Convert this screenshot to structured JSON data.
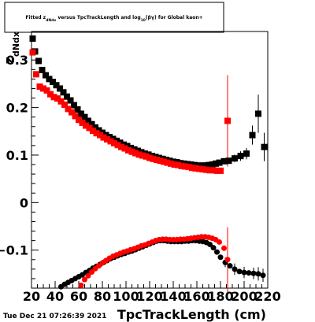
{
  "timestamp": "Tue Dec 21 07:26:39 2021",
  "chart_data": {
    "type": "scatter",
    "title": "Fitted  z_dNdx  versus TpcTrackLength and log_10(βγ) for Global kaon+",
    "xlabel": "TpcTrackLength (cm)",
    "ylabel": "z_dNdx",
    "xlim": [
      20,
      220
    ],
    "ylim": [
      -0.18,
      0.36
    ],
    "grid": false,
    "x_ticks": [
      20,
      40,
      60,
      80,
      100,
      120,
      140,
      160,
      180,
      200,
      220
    ],
    "y_ticks": [
      -0.1,
      0,
      0.1,
      0.2,
      0.3
    ],
    "y_tick_labels": [
      "−0.1",
      "0",
      "0.1",
      "0.2",
      "0.3"
    ],
    "series": [
      {
        "color": "#000000",
        "marker": "square",
        "points": [
          [
            21,
            0.345
          ],
          [
            23,
            0.318
          ],
          [
            26,
            0.298
          ],
          [
            29,
            0.279
          ],
          [
            32,
            0.268
          ],
          [
            35,
            0.26
          ],
          [
            38,
            0.254
          ],
          [
            41,
            0.247
          ],
          [
            44,
            0.24
          ],
          [
            47,
            0.232
          ],
          [
            50,
            0.223
          ],
          [
            53,
            0.215
          ],
          [
            56,
            0.205
          ],
          [
            59,
            0.196
          ],
          [
            62,
            0.187
          ],
          [
            65,
            0.18
          ],
          [
            68,
            0.172
          ],
          [
            71,
            0.165
          ],
          [
            74,
            0.158
          ],
          [
            77,
            0.152
          ],
          [
            80,
            0.147
          ],
          [
            83,
            0.142
          ],
          [
            86,
            0.138
          ],
          [
            89,
            0.134
          ],
          [
            92,
            0.13
          ],
          [
            95,
            0.126
          ],
          [
            98,
            0.122
          ],
          [
            101,
            0.119
          ],
          [
            104,
            0.115
          ],
          [
            107,
            0.112
          ],
          [
            110,
            0.109
          ],
          [
            113,
            0.106
          ],
          [
            116,
            0.103
          ],
          [
            119,
            0.101
          ],
          [
            122,
            0.098
          ],
          [
            125,
            0.096
          ],
          [
            128,
            0.094
          ],
          [
            131,
            0.092
          ],
          [
            134,
            0.09
          ],
          [
            137,
            0.088
          ],
          [
            140,
            0.086
          ],
          [
            143,
            0.085
          ],
          [
            146,
            0.083
          ],
          [
            149,
            0.082
          ],
          [
            152,
            0.081
          ],
          [
            155,
            0.08
          ],
          [
            158,
            0.079
          ],
          [
            161,
            0.078
          ],
          [
            164,
            0.078
          ],
          [
            167,
            0.078
          ],
          [
            170,
            0.079
          ],
          [
            173,
            0.08
          ],
          [
            176,
            0.082
          ],
          [
            179,
            0.084
          ],
          [
            183,
            0.087
          ],
          [
            187,
            0.088
          ],
          [
            192,
            0.093
          ],
          [
            197,
            0.098
          ],
          [
            202,
            0.103
          ],
          [
            207,
            0.142
          ],
          [
            212,
            0.187
          ],
          [
            217,
            0.117
          ]
        ],
        "errors": [
          [
            192,
            0.008
          ],
          [
            197,
            0.01
          ],
          [
            202,
            0.012
          ],
          [
            207,
            0.02
          ],
          [
            212,
            0.04
          ],
          [
            217,
            0.03
          ]
        ]
      },
      {
        "color": "#ff0000",
        "marker": "square",
        "points": [
          [
            21,
            0.316
          ],
          [
            24,
            0.27
          ],
          [
            27,
            0.244
          ],
          [
            30,
            0.24
          ],
          [
            33,
            0.236
          ],
          [
            36,
            0.228
          ],
          [
            39,
            0.222
          ],
          [
            42,
            0.219
          ],
          [
            45,
            0.213
          ],
          [
            48,
            0.206
          ],
          [
            51,
            0.197
          ],
          [
            54,
            0.19
          ],
          [
            57,
            0.182
          ],
          [
            60,
            0.174
          ],
          [
            63,
            0.168
          ],
          [
            66,
            0.162
          ],
          [
            69,
            0.157
          ],
          [
            72,
            0.151
          ],
          [
            75,
            0.146
          ],
          [
            78,
            0.142
          ],
          [
            81,
            0.137
          ],
          [
            84,
            0.133
          ],
          [
            87,
            0.129
          ],
          [
            90,
            0.125
          ],
          [
            93,
            0.121
          ],
          [
            96,
            0.117
          ],
          [
            99,
            0.114
          ],
          [
            102,
            0.11
          ],
          [
            105,
            0.107
          ],
          [
            108,
            0.104
          ],
          [
            111,
            0.101
          ],
          [
            114,
            0.099
          ],
          [
            117,
            0.097
          ],
          [
            120,
            0.094
          ],
          [
            123,
            0.092
          ],
          [
            126,
            0.09
          ],
          [
            129,
            0.088
          ],
          [
            132,
            0.086
          ],
          [
            135,
            0.084
          ],
          [
            138,
            0.082
          ],
          [
            141,
            0.08
          ],
          [
            144,
            0.079
          ],
          [
            147,
            0.077
          ],
          [
            150,
            0.076
          ],
          [
            153,
            0.075
          ],
          [
            156,
            0.073
          ],
          [
            159,
            0.072
          ],
          [
            162,
            0.071
          ],
          [
            165,
            0.07
          ],
          [
            168,
            0.069
          ],
          [
            171,
            0.068
          ],
          [
            174,
            0.068
          ],
          [
            177,
            0.067
          ],
          [
            180,
            0.067
          ],
          [
            186,
            0.172
          ]
        ],
        "errors": [
          [
            186,
            0.096
          ]
        ]
      },
      {
        "color": "#000000",
        "marker": "circle",
        "points": [
          [
            39,
            -0.188
          ],
          [
            42,
            -0.182
          ],
          [
            45,
            -0.177
          ],
          [
            48,
            -0.172
          ],
          [
            51,
            -0.168
          ],
          [
            54,
            -0.164
          ],
          [
            57,
            -0.16
          ],
          [
            60,
            -0.156
          ],
          [
            63,
            -0.152
          ],
          [
            66,
            -0.147
          ],
          [
            69,
            -0.143
          ],
          [
            72,
            -0.138
          ],
          [
            75,
            -0.134
          ],
          [
            78,
            -0.13
          ],
          [
            81,
            -0.126
          ],
          [
            84,
            -0.122
          ],
          [
            87,
            -0.118
          ],
          [
            90,
            -0.115
          ],
          [
            93,
            -0.112
          ],
          [
            96,
            -0.109
          ],
          [
            99,
            -0.107
          ],
          [
            102,
            -0.104
          ],
          [
            105,
            -0.102
          ],
          [
            108,
            -0.099
          ],
          [
            111,
            -0.096
          ],
          [
            114,
            -0.093
          ],
          [
            117,
            -0.09
          ],
          [
            120,
            -0.087
          ],
          [
            123,
            -0.084
          ],
          [
            126,
            -0.081
          ],
          [
            129,
            -0.08
          ],
          [
            132,
            -0.08
          ],
          [
            135,
            -0.081
          ],
          [
            138,
            -0.082
          ],
          [
            141,
            -0.082
          ],
          [
            144,
            -0.082
          ],
          [
            147,
            -0.082
          ],
          [
            150,
            -0.081
          ],
          [
            153,
            -0.081
          ],
          [
            156,
            -0.08
          ],
          [
            159,
            -0.08
          ],
          [
            162,
            -0.081
          ],
          [
            165,
            -0.082
          ],
          [
            168,
            -0.084
          ],
          [
            171,
            -0.088
          ],
          [
            174,
            -0.095
          ],
          [
            177,
            -0.104
          ],
          [
            180,
            -0.115
          ],
          [
            184,
            -0.126
          ],
          [
            188,
            -0.133
          ],
          [
            192,
            -0.14
          ],
          [
            196,
            -0.145
          ],
          [
            200,
            -0.147
          ],
          [
            204,
            -0.148
          ],
          [
            208,
            -0.149
          ],
          [
            212,
            -0.15
          ],
          [
            216,
            -0.153
          ]
        ],
        "errors": [
          [
            184,
            0.01
          ],
          [
            192,
            0.012
          ],
          [
            200,
            0.012
          ],
          [
            208,
            0.012
          ],
          [
            212,
            0.014
          ],
          [
            216,
            0.014
          ]
        ]
      },
      {
        "color": "#ff0000",
        "marker": "circle",
        "points": [
          [
            59,
            -0.185
          ],
          [
            62,
            -0.174
          ],
          [
            65,
            -0.162
          ],
          [
            68,
            -0.154
          ],
          [
            71,
            -0.146
          ],
          [
            74,
            -0.139
          ],
          [
            77,
            -0.133
          ],
          [
            80,
            -0.127
          ],
          [
            83,
            -0.122
          ],
          [
            86,
            -0.117
          ],
          [
            89,
            -0.113
          ],
          [
            92,
            -0.11
          ],
          [
            95,
            -0.107
          ],
          [
            98,
            -0.104
          ],
          [
            101,
            -0.102
          ],
          [
            104,
            -0.099
          ],
          [
            107,
            -0.097
          ],
          [
            110,
            -0.094
          ],
          [
            113,
            -0.091
          ],
          [
            116,
            -0.089
          ],
          [
            119,
            -0.086
          ],
          [
            122,
            -0.083
          ],
          [
            125,
            -0.08
          ],
          [
            128,
            -0.078
          ],
          [
            131,
            -0.077
          ],
          [
            134,
            -0.077
          ],
          [
            137,
            -0.078
          ],
          [
            140,
            -0.078
          ],
          [
            143,
            -0.078
          ],
          [
            146,
            -0.077
          ],
          [
            149,
            -0.077
          ],
          [
            152,
            -0.076
          ],
          [
            155,
            -0.075
          ],
          [
            158,
            -0.074
          ],
          [
            161,
            -0.073
          ],
          [
            164,
            -0.072
          ],
          [
            167,
            -0.072
          ],
          [
            170,
            -0.073
          ],
          [
            173,
            -0.075
          ],
          [
            176,
            -0.078
          ],
          [
            179,
            -0.083
          ],
          [
            183,
            -0.096
          ],
          [
            186,
            -0.12
          ]
        ],
        "errors": [
          [
            186,
            0.068
          ]
        ]
      }
    ]
  }
}
